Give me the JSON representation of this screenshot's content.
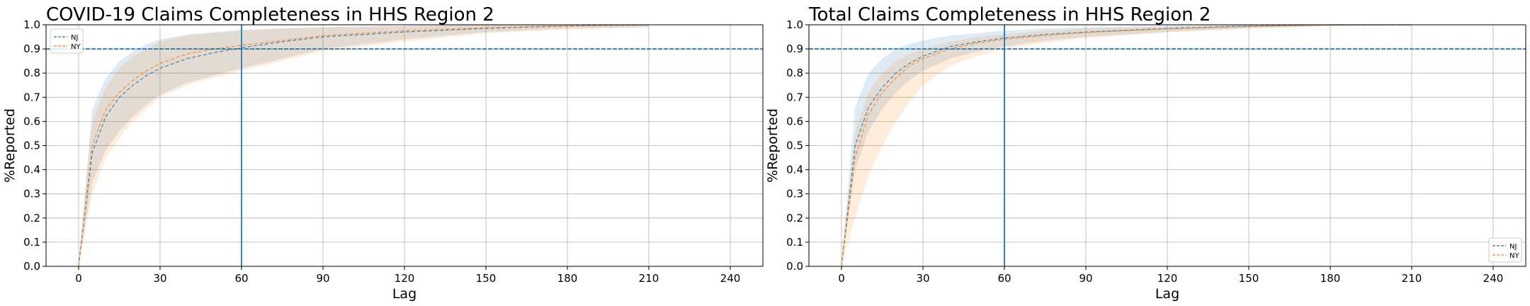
{
  "colors": {
    "nj": "#1f77b4",
    "ny": "#ff7f0e",
    "reference": "#1f77b4",
    "grid": "#b0b0b0"
  },
  "chart_data": [
    {
      "type": "line",
      "title": "COVID-19 Claims Completeness in HHS Region 2",
      "xlabel": "Lag",
      "ylabel": "%Reported",
      "xlim": [
        -12,
        252
      ],
      "ylim": [
        0,
        1.0
      ],
      "xticks": [
        0,
        30,
        60,
        90,
        120,
        150,
        180,
        210,
        240
      ],
      "yticks": [
        0.0,
        0.1,
        0.2,
        0.3,
        0.4,
        0.5,
        0.6,
        0.7,
        0.8,
        0.9,
        1.0
      ],
      "grid": true,
      "legend_position": "upper-left",
      "hline": 0.9,
      "vline": 60,
      "series": [
        {
          "name": "NJ",
          "x": [
            0,
            5,
            10,
            15,
            20,
            25,
            30,
            40,
            50,
            60,
            75,
            90,
            120,
            150,
            180,
            210
          ],
          "y": [
            0.0,
            0.47,
            0.62,
            0.7,
            0.75,
            0.79,
            0.82,
            0.86,
            0.885,
            0.905,
            0.93,
            0.95,
            0.97,
            0.985,
            0.995,
            1.0
          ],
          "lower": [
            0.0,
            0.35,
            0.48,
            0.56,
            0.62,
            0.67,
            0.71,
            0.76,
            0.79,
            0.82,
            0.86,
            0.9,
            0.94,
            0.97,
            0.985,
            0.99
          ],
          "upper": [
            0.02,
            0.65,
            0.78,
            0.85,
            0.89,
            0.92,
            0.94,
            0.96,
            0.97,
            0.98,
            0.985,
            0.99,
            0.995,
            1.0,
            1.0,
            1.0
          ]
        },
        {
          "name": "NY",
          "x": [
            0,
            5,
            10,
            15,
            20,
            25,
            30,
            40,
            50,
            60,
            75,
            90,
            120,
            150,
            180,
            210
          ],
          "y": [
            0.0,
            0.5,
            0.65,
            0.72,
            0.77,
            0.81,
            0.84,
            0.88,
            0.9,
            0.915,
            0.935,
            0.955,
            0.975,
            0.988,
            0.996,
            1.0
          ],
          "lower": [
            0.0,
            0.3,
            0.45,
            0.53,
            0.6,
            0.65,
            0.7,
            0.75,
            0.78,
            0.81,
            0.85,
            0.89,
            0.93,
            0.965,
            0.98,
            0.99
          ],
          "upper": [
            0.02,
            0.6,
            0.74,
            0.82,
            0.87,
            0.9,
            0.93,
            0.955,
            0.965,
            0.975,
            0.985,
            0.99,
            0.995,
            1.0,
            1.0,
            1.0
          ]
        }
      ]
    },
    {
      "type": "line",
      "title": "Total Claims Completeness in HHS Region 2",
      "xlabel": "Lag",
      "ylabel": "%Reported",
      "xlim": [
        -12,
        252
      ],
      "ylim": [
        0,
        1.0
      ],
      "xticks": [
        0,
        30,
        60,
        90,
        120,
        150,
        180,
        210,
        240
      ],
      "yticks": [
        0.0,
        0.1,
        0.2,
        0.3,
        0.4,
        0.5,
        0.6,
        0.7,
        0.8,
        0.9,
        1.0
      ],
      "grid": true,
      "legend_position": "lower-right",
      "hline": 0.9,
      "vline": 60,
      "series": [
        {
          "name": "NJ",
          "x": [
            0,
            5,
            10,
            15,
            20,
            25,
            30,
            40,
            50,
            60,
            75,
            90,
            120,
            150,
            180,
            210
          ],
          "y": [
            0.0,
            0.5,
            0.66,
            0.74,
            0.8,
            0.84,
            0.87,
            0.91,
            0.93,
            0.945,
            0.96,
            0.97,
            0.985,
            0.995,
            1.0,
            1.0
          ],
          "lower": [
            0.0,
            0.4,
            0.56,
            0.65,
            0.72,
            0.77,
            0.81,
            0.86,
            0.89,
            0.91,
            0.935,
            0.95,
            0.97,
            0.985,
            0.995,
            0.998
          ],
          "upper": [
            0.03,
            0.66,
            0.8,
            0.86,
            0.9,
            0.92,
            0.935,
            0.955,
            0.965,
            0.975,
            0.985,
            0.99,
            0.996,
            1.0,
            1.0,
            1.0
          ]
        },
        {
          "name": "NY",
          "x": [
            0,
            5,
            10,
            15,
            20,
            25,
            30,
            40,
            50,
            60,
            75,
            90,
            120,
            150,
            180,
            210
          ],
          "y": [
            0.0,
            0.45,
            0.63,
            0.72,
            0.78,
            0.83,
            0.86,
            0.9,
            0.925,
            0.94,
            0.955,
            0.968,
            0.983,
            0.993,
            0.999,
            1.0
          ],
          "lower": [
            0.0,
            0.2,
            0.38,
            0.5,
            0.6,
            0.68,
            0.75,
            0.83,
            0.87,
            0.9,
            0.925,
            0.945,
            0.97,
            0.985,
            0.995,
            0.998
          ],
          "upper": [
            0.02,
            0.55,
            0.72,
            0.8,
            0.85,
            0.88,
            0.9,
            0.93,
            0.95,
            0.96,
            0.975,
            0.985,
            0.993,
            0.998,
            1.0,
            1.0
          ]
        }
      ]
    }
  ]
}
